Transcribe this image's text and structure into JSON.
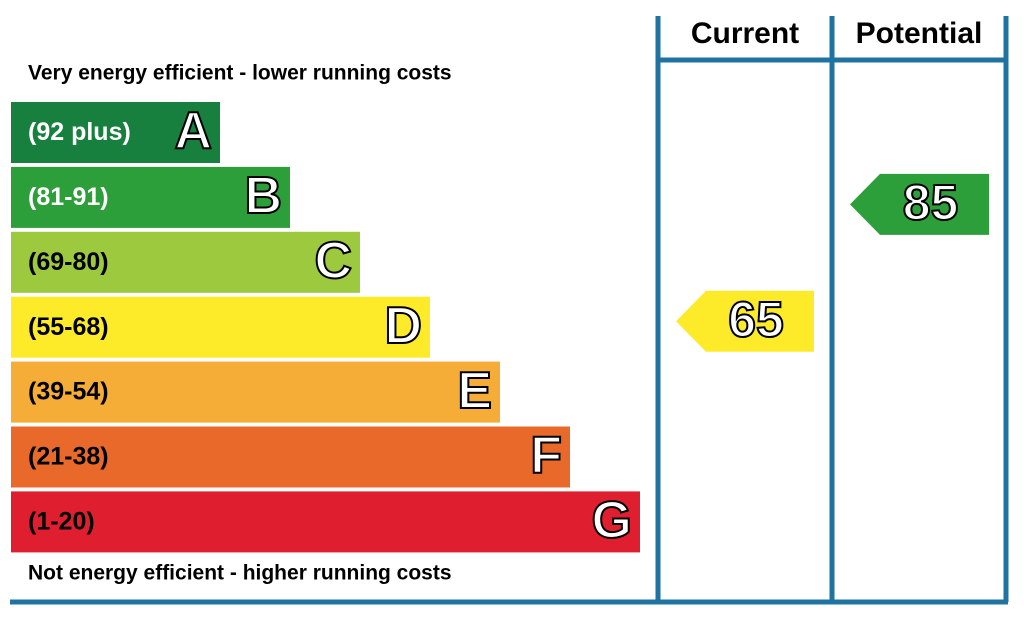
{
  "header": {
    "current": "Current",
    "potential": "Potential"
  },
  "top_note": "Very energy efficient - lower running costs",
  "bottom_note": "Not energy efficient - higher running costs",
  "bands": [
    {
      "range": "(92 plus)",
      "letter": "A",
      "color": "#17803e"
    },
    {
      "range": "(81-91)",
      "letter": "B",
      "color": "#2c9f3a"
    },
    {
      "range": "(69-80)",
      "letter": "C",
      "color": "#9dc93f"
    },
    {
      "range": "(55-68)",
      "letter": "D",
      "color": "#fdeb2a"
    },
    {
      "range": "(39-54)",
      "letter": "E",
      "color": "#f5ad37"
    },
    {
      "range": "(21-38)",
      "letter": "F",
      "color": "#e9692b"
    },
    {
      "range": "(1-20)",
      "letter": "G",
      "color": "#df1f2f"
    }
  ],
  "ratings": {
    "current": 65,
    "potential": 85
  }
}
